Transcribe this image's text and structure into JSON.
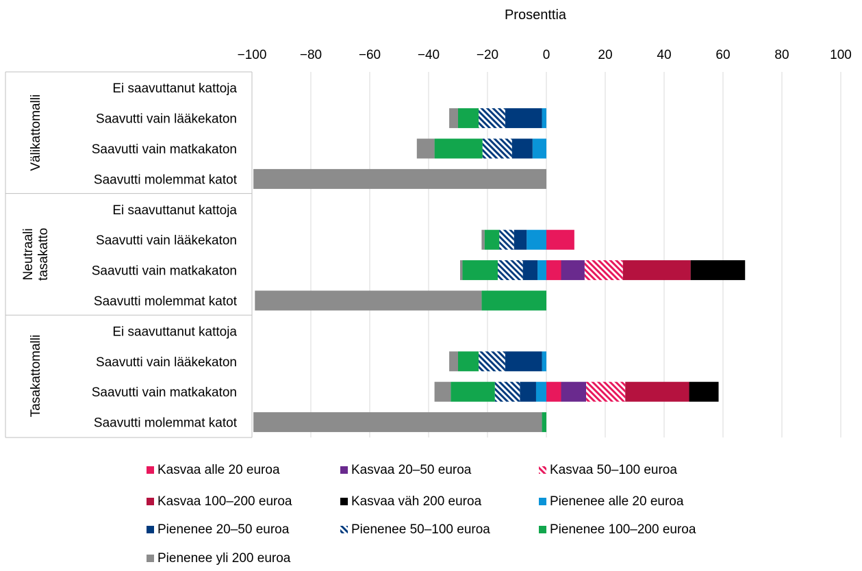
{
  "chart_data": {
    "type": "bar",
    "orientation": "horizontal",
    "stacked": true,
    "title": "",
    "xlabel": "Prosenttia",
    "xlim": [
      -100,
      100
    ],
    "xticks": [
      -100,
      -80,
      -60,
      -40,
      -20,
      0,
      20,
      40,
      60,
      80,
      100
    ],
    "xtick_labels": [
      "−100",
      "−80",
      "−60",
      "−40",
      "−20",
      "0",
      "20",
      "40",
      "60",
      "80",
      "100"
    ],
    "grid": true,
    "legend_position": "bottom",
    "groups": [
      {
        "label": "Välikattomalli",
        "label_lines": [
          "Välikattomalli"
        ]
      },
      {
        "label": "Neutraali tasakatto",
        "label_lines": [
          "Neutraali",
          "tasakatto"
        ]
      },
      {
        "label": "Tasakattomalli",
        "label_lines": [
          "Tasakattomalli"
        ]
      }
    ],
    "categories": [
      {
        "group": 0,
        "label": "Ei saavuttanut kattoja"
      },
      {
        "group": 0,
        "label": "Saavutti vain lääkekaton"
      },
      {
        "group": 0,
        "label": "Saavutti vain matkakaton"
      },
      {
        "group": 0,
        "label": "Saavutti molemmat katot"
      },
      {
        "group": 1,
        "label": "Ei saavuttanut kattoja"
      },
      {
        "group": 1,
        "label": "Saavutti vain lääkekaton"
      },
      {
        "group": 1,
        "label": "Saavutti vain matkakaton"
      },
      {
        "group": 1,
        "label": "Saavutti molemmat katot"
      },
      {
        "group": 2,
        "label": "Ei saavuttanut kattoja"
      },
      {
        "group": 2,
        "label": "Saavutti vain lääkekaton"
      },
      {
        "group": 2,
        "label": "Saavutti vain matkakaton"
      },
      {
        "group": 2,
        "label": "Saavutti molemmat katot"
      }
    ],
    "series": [
      {
        "name": "Kasvaa alle 20 euroa",
        "direction": "positive",
        "color": "#e8185c",
        "pattern": false,
        "values": [
          0,
          0,
          0,
          0,
          0,
          9.5,
          5,
          0,
          0,
          0,
          5,
          0
        ]
      },
      {
        "name": "Kasvaa 20–50 euroa",
        "direction": "positive",
        "color": "#6a2a8e",
        "pattern": false,
        "values": [
          0,
          0,
          0,
          0,
          0,
          0,
          8,
          0,
          0,
          0,
          8.5,
          0
        ]
      },
      {
        "name": "Kasvaa 50–100 euroa",
        "direction": "positive",
        "color": "#e8185c",
        "pattern": true,
        "values": [
          0,
          0,
          0,
          0,
          0,
          0,
          13,
          0,
          0,
          0,
          13.3,
          0
        ]
      },
      {
        "name": "Kasvaa 100–200 euroa",
        "direction": "positive",
        "color": "#b5123f",
        "pattern": false,
        "values": [
          0,
          0,
          0,
          0,
          0,
          0,
          23,
          0,
          0,
          0,
          21.7,
          0
        ]
      },
      {
        "name": "Kasvaa väh 200 euroa",
        "direction": "positive",
        "color": "#000000",
        "pattern": false,
        "values": [
          0,
          0,
          0,
          0,
          0,
          0,
          18.5,
          0,
          0,
          0,
          10,
          0
        ]
      },
      {
        "name": "Pienenee alle 20 euroa",
        "direction": "negative",
        "color": "#0a94d8",
        "pattern": false,
        "values": [
          0,
          1.5,
          4.7,
          0,
          0,
          6.7,
          3,
          0,
          0,
          1.5,
          3.5,
          0
        ]
      },
      {
        "name": "Pienenee 20–50 euroa",
        "direction": "negative",
        "color": "#003a7d",
        "pattern": false,
        "values": [
          0,
          12.5,
          7,
          0,
          0,
          4.3,
          5,
          0,
          0,
          12.5,
          5.5,
          0
        ]
      },
      {
        "name": "Pienenee 50–100 euroa",
        "direction": "negative",
        "color": "#003a7d",
        "pattern": true,
        "values": [
          0,
          9,
          10,
          0,
          0,
          5,
          8.5,
          0,
          0,
          9,
          8.5,
          0
        ]
      },
      {
        "name": "Pienenee 100–200 euroa",
        "direction": "negative",
        "color": "#12a64d",
        "pattern": false,
        "values": [
          0,
          7,
          16.3,
          0,
          0,
          5,
          12,
          22,
          0,
          7,
          15,
          1.5
        ]
      },
      {
        "name": "Pienenee yli 200 euroa",
        "direction": "negative",
        "color": "#8c8c8c",
        "pattern": false,
        "values": [
          0,
          3,
          6,
          99.5,
          0,
          1,
          0.8,
          77,
          0,
          3,
          5.5,
          98
        ]
      }
    ],
    "legend_order": [
      "Kasvaa alle 20 euroa",
      "Kasvaa 20–50 euroa",
      "Kasvaa 50–100 euroa",
      "Kasvaa 100–200 euroa",
      "Kasvaa väh 200 euroa",
      "Pienenee alle 20 euroa",
      "Pienenee 20–50 euroa",
      "Pienenee 50–100 euroa",
      "Pienenee 100–200 euroa",
      "Pienenee yli 200 euroa"
    ]
  }
}
